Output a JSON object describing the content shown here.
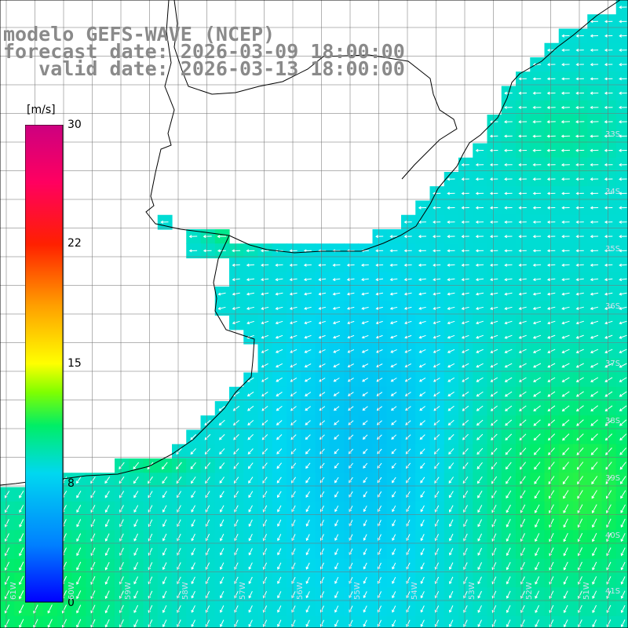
{
  "title": {
    "line1": "modelo GEFS-WAVE (NCEP)",
    "line2": "forecast date: 2026-03-09 18:00:00",
    "line3": "   valid date: 2026-03-13 18:00:00"
  },
  "colorbar": {
    "unit": "[m/s]",
    "ticks": [
      "30",
      "22",
      "15",
      "8",
      "0"
    ],
    "colors": [
      "#0000ff",
      "#0080ff",
      "#00d8f0",
      "#00ee66",
      "#80ff00",
      "#ffff00",
      "#ffa000",
      "#ff2000",
      "#ff0060",
      "#cc0080"
    ]
  },
  "grid": {
    "lat_labels": [
      "33S",
      "34S",
      "35S",
      "36S",
      "37S",
      "38S",
      "39S",
      "40S",
      "41S"
    ],
    "lon_labels": [
      "61W",
      "60W",
      "59W",
      "58W",
      "57W",
      "56W",
      "55W",
      "54W",
      "53W",
      "52W",
      "51W"
    ]
  },
  "field": {
    "name": "wind speed",
    "units": "m/s",
    "dominant_range": [
      7,
      11
    ],
    "direction": "from east to north-east over north, from north-east further south"
  }
}
